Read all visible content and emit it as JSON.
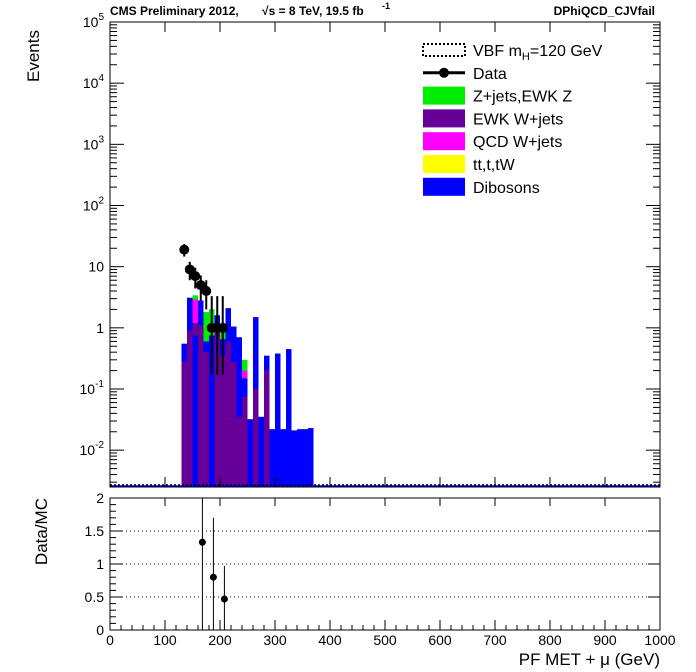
{
  "header": {
    "cms_label": "CMS Preliminary 2012,",
    "energy_label": "√s = 8 TeV, 19.5 fb",
    "lumi_exponent": "-1",
    "channel": "DPhiQCD_CJVfail"
  },
  "chart_data": [
    {
      "type": "bar",
      "title": "",
      "ylabel": "Events",
      "xlabel": "",
      "log_y": true,
      "xlim": [
        0,
        1000
      ],
      "ylim": [
        0.0025,
        100000
      ],
      "grid": false,
      "legend_position": "top-right",
      "y_tick_labels": [
        "10^-2",
        "10^-1",
        "1",
        "10",
        "10^2",
        "10^3",
        "10^4",
        "10^5"
      ],
      "bin_width": 10,
      "background_series": [
        {
          "name": "EWK W+jets",
          "color": "#660099",
          "stack_order": 1
        },
        {
          "name": "QCD W+jets",
          "color": "#ff00ff",
          "stack_order": 2
        },
        {
          "name": "Z+jets,EWK Z",
          "color": "#00ee00",
          "stack_order": 3
        },
        {
          "name": "tt,t,tW",
          "color": "#ffff00",
          "stack_order": 4
        },
        {
          "name": "Dibosons",
          "color": "#0000ff",
          "stack_order": 5
        }
      ],
      "stack_bins": [
        {
          "x": 130,
          "layers": [
            0.28,
            0.55,
            0.55,
            0.55,
            0.55
          ]
        },
        {
          "x": 140,
          "layers": [
            0.9,
            3.1,
            3.1,
            3.1,
            3.1
          ]
        },
        {
          "x": 150,
          "layers": [
            1.2,
            2.9,
            3.4,
            0.75,
            0.75
          ]
        },
        {
          "x": 160,
          "layers": [
            1.1,
            2.8,
            2.8,
            2.8,
            2.8
          ]
        },
        {
          "x": 170,
          "layers": [
            0.4,
            1.8,
            1.8,
            0.6,
            0.6
          ]
        },
        {
          "x": 180,
          "layers": [
            2.0,
            2.0,
            2.0,
            0.75,
            0.75
          ]
        },
        {
          "x": 190,
          "layers": [
            1.1,
            1.6,
            1.6,
            1.6,
            1.6
          ]
        },
        {
          "x": 200,
          "layers": [
            0.35,
            1.1,
            1.1,
            0.65,
            0.65
          ]
        },
        {
          "x": 210,
          "layers": [
            0.6,
            2.1,
            2.1,
            2.1,
            2.1
          ]
        },
        {
          "x": 220,
          "layers": [
            0.28,
            1.05,
            1.05,
            1.05,
            1.05
          ]
        },
        {
          "x": 230,
          "layers": [
            0.035,
            0.7,
            0.7,
            0.7,
            0.7
          ]
        },
        {
          "x": 240,
          "layers": [
            0.075,
            0.2,
            0.3,
            0.15,
            0.15
          ]
        },
        {
          "x": 250,
          "layers": [
            0.032,
            0.032,
            0.032,
            0.032,
            0.032
          ]
        },
        {
          "x": 260,
          "layers": [
            0.1,
            1.5,
            1.5,
            1.5,
            1.5
          ]
        },
        {
          "x": 270,
          "layers": [
            0.035,
            0.035,
            0.035,
            0.035,
            0.035
          ]
        },
        {
          "x": 280,
          "layers": [
            0.2,
            0.35,
            0.35,
            0.35,
            0.35
          ]
        },
        {
          "x": 290,
          "layers": [
            0.022,
            0.022,
            0.022,
            0.022,
            0.022
          ]
        },
        {
          "x": 300,
          "layers": [
            0.38,
            0.38,
            0.38,
            0.38,
            0.38
          ]
        },
        {
          "x": 310,
          "layers": [
            0.022,
            0.022,
            0.022,
            0.022,
            0.022
          ]
        },
        {
          "x": 320,
          "layers": [
            0.45,
            0.45,
            0.45,
            0.45,
            0.45
          ]
        },
        {
          "x": 330,
          "layers": [
            0.021,
            0.021,
            0.021,
            0.021,
            0.021
          ]
        },
        {
          "x": 340,
          "layers": [
            0.022,
            0.022,
            0.022,
            0.022,
            0.022
          ]
        },
        {
          "x": 350,
          "layers": [
            0.022,
            0.022,
            0.022,
            0.022,
            0.022
          ]
        },
        {
          "x": 360,
          "layers": [
            0.023,
            0.023,
            0.023,
            0.023,
            0.023
          ]
        }
      ],
      "signal_series": {
        "name": "VBF m_H=120 GeV",
        "baseline": 0.0025
      },
      "data_series": {
        "name": "Data",
        "x": [
          135,
          145,
          155,
          165,
          175,
          185,
          195,
          205
        ],
        "y": [
          19,
          9,
          7,
          5,
          4,
          1,
          1,
          1
        ],
        "y_err_low": [
          4.4,
          3,
          2.6,
          2.2,
          2.0,
          0.83,
          0.83,
          0.83
        ],
        "y_err_high": [
          4.4,
          3,
          2.6,
          2.2,
          2.0,
          2.3,
          2.3,
          2.3
        ]
      },
      "legend_entries": [
        {
          "label": "VBF m",
          "sub": "H",
          "suffix": "=120 GeV",
          "marker": "dotted-line"
        },
        {
          "label": "Data",
          "sub": "",
          "suffix": "",
          "marker": "point"
        },
        {
          "label": "Z+jets,EWK Z",
          "sub": "",
          "suffix": "",
          "marker": "box",
          "color": "#00ee00"
        },
        {
          "label": "EWK W+jets",
          "sub": "",
          "suffix": "",
          "marker": "box",
          "color": "#660099"
        },
        {
          "label": "QCD W+jets",
          "sub": "",
          "suffix": "",
          "marker": "box",
          "color": "#ff00ff"
        },
        {
          "label": "tt,t,tW",
          "sub": "",
          "suffix": "",
          "marker": "box",
          "color": "#ffff00"
        },
        {
          "label": "Dibosons",
          "sub": "",
          "suffix": "",
          "marker": "box",
          "color": "#0000ff"
        }
      ]
    },
    {
      "type": "scatter",
      "title": "",
      "ylabel": "Data/MC",
      "xlabel": "PF MET + μ (GeV)",
      "xlim": [
        0,
        1000
      ],
      "ylim": [
        0,
        2
      ],
      "grid": "horizontal-dotted",
      "x_ticks": [
        0,
        100,
        200,
        300,
        400,
        500,
        600,
        700,
        800,
        900,
        1000
      ],
      "y_ticks": [
        0,
        0.5,
        1,
        1.5,
        2
      ],
      "x": [
        168,
        188,
        208
      ],
      "y": [
        1.33,
        0.8,
        0.47
      ],
      "y_err_low": [
        1.33,
        0.8,
        0.47
      ],
      "y_err_high": [
        0.67,
        0.9,
        0.5
      ]
    }
  ]
}
